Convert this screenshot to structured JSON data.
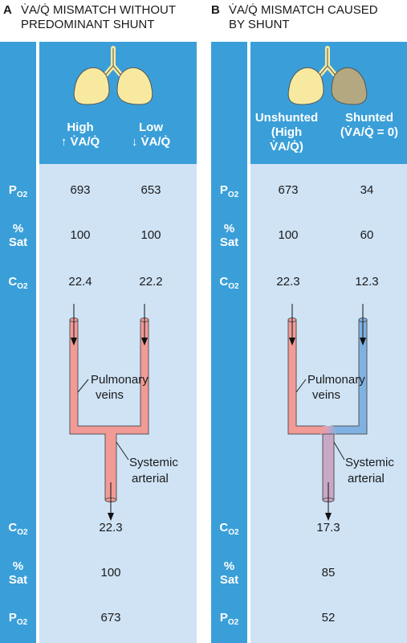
{
  "panel_a": {
    "letter": "A",
    "title_line1": "V̇A/Q̇ MISMATCH WITHOUT",
    "title_line2": "PREDOMINANT SHUNT",
    "col1_line1": "High",
    "col1_line2": "↑ V̇A/Q̇",
    "col2_line1": "Low",
    "col2_line2": "↓ V̇A/Q̇",
    "po2": [
      "693",
      "653"
    ],
    "sat": [
      "100",
      "100"
    ],
    "co2": [
      "22.4",
      "22.2"
    ],
    "pulmonary_veins_line1": "Pulmonary",
    "pulmonary_veins_line2": "veins",
    "systemic_line1": "Systemic",
    "systemic_line2": "arterial",
    "mixed_co2": "22.3",
    "mixed_sat": "100",
    "mixed_po2": "673",
    "colors": {
      "vessel": "#f29a96",
      "lung": "#f7eaa0"
    }
  },
  "panel_b": {
    "letter": "B",
    "title_line1": "V̇A/Q̇ MISMATCH CAUSED",
    "title_line2": "BY SHUNT",
    "col1_line1": "Unshunted",
    "col1_line2": "(High",
    "col1_line3": "V̇A/Q̇)",
    "col2_line1": "Shunted",
    "col2_line2": "(V̇A/Q̇ = 0)",
    "po2": [
      "673",
      "34"
    ],
    "sat": [
      "100",
      "60"
    ],
    "co2": [
      "22.3",
      "12.3"
    ],
    "pulmonary_veins_line1": "Pulmonary",
    "pulmonary_veins_line2": "veins",
    "systemic_line1": "Systemic",
    "systemic_line2": "arterial",
    "mixed_co2": "17.3",
    "mixed_sat": "85",
    "mixed_po2": "52",
    "colors": {
      "vessel_left": "#f29a96",
      "vessel_right": "#7fb2e3",
      "lung_left": "#f7eaa0",
      "lung_right": "#b3a880"
    }
  },
  "row_labels": {
    "po2_main": "P",
    "po2_sub": "O2",
    "sat_line1": "%",
    "sat_line2": "Sat",
    "co2_main": "C",
    "co2_sub": "O2"
  }
}
